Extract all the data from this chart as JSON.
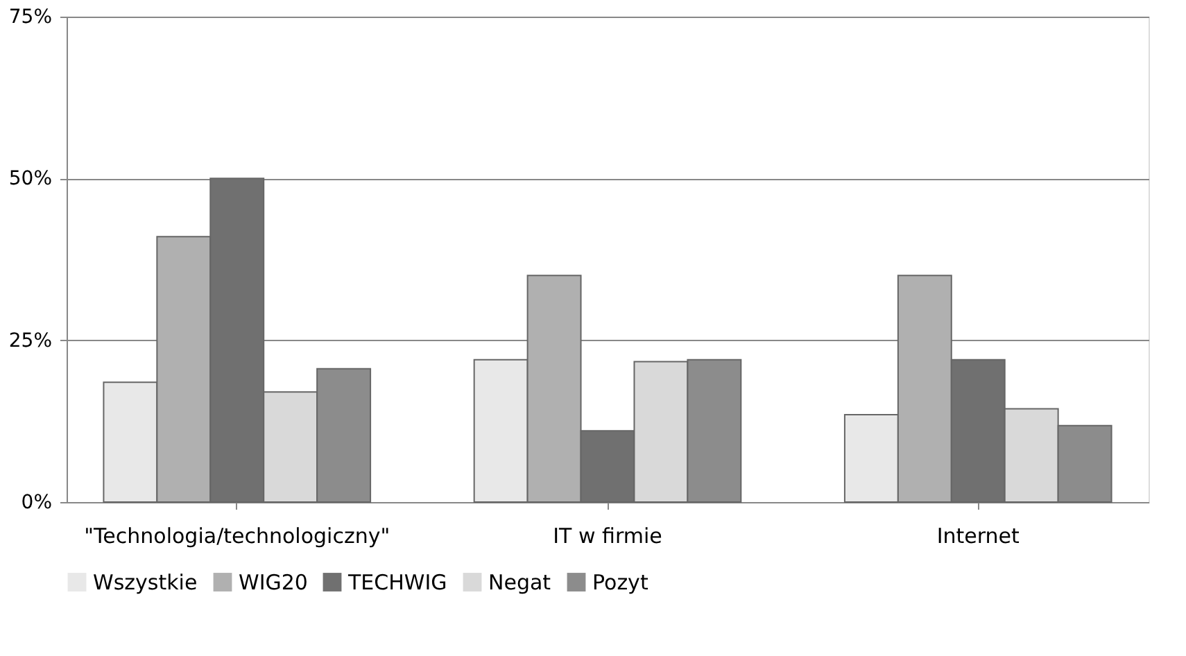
{
  "chart_data": {
    "type": "bar",
    "categories": [
      "\"Technologia/technologiczny\"",
      "IT w firmie",
      "Internet"
    ],
    "series": [
      {
        "name": "Wszystkie",
        "color": "#e8e8e8",
        "values": [
          18.5,
          22,
          13.5
        ]
      },
      {
        "name": "WIG20",
        "color": "#b0b0b0",
        "values": [
          41,
          35,
          35
        ]
      },
      {
        "name": "TECHWIG",
        "color": "#707070",
        "values": [
          50,
          11,
          22
        ]
      },
      {
        "name": "Negat",
        "color": "#d9d9d9",
        "values": [
          17,
          21.7,
          14.4
        ]
      },
      {
        "name": "Pozyt",
        "color": "#8c8c8c",
        "values": [
          20.6,
          22,
          11.8
        ]
      }
    ],
    "ylim": [
      0,
      75
    ],
    "yticks": [
      {
        "value": 0,
        "label": "0%"
      },
      {
        "value": 25,
        "label": "25%"
      },
      {
        "value": 50,
        "label": "50%"
      },
      {
        "value": 75,
        "label": "75%"
      }
    ],
    "grid": "y",
    "legend": "bottom"
  }
}
